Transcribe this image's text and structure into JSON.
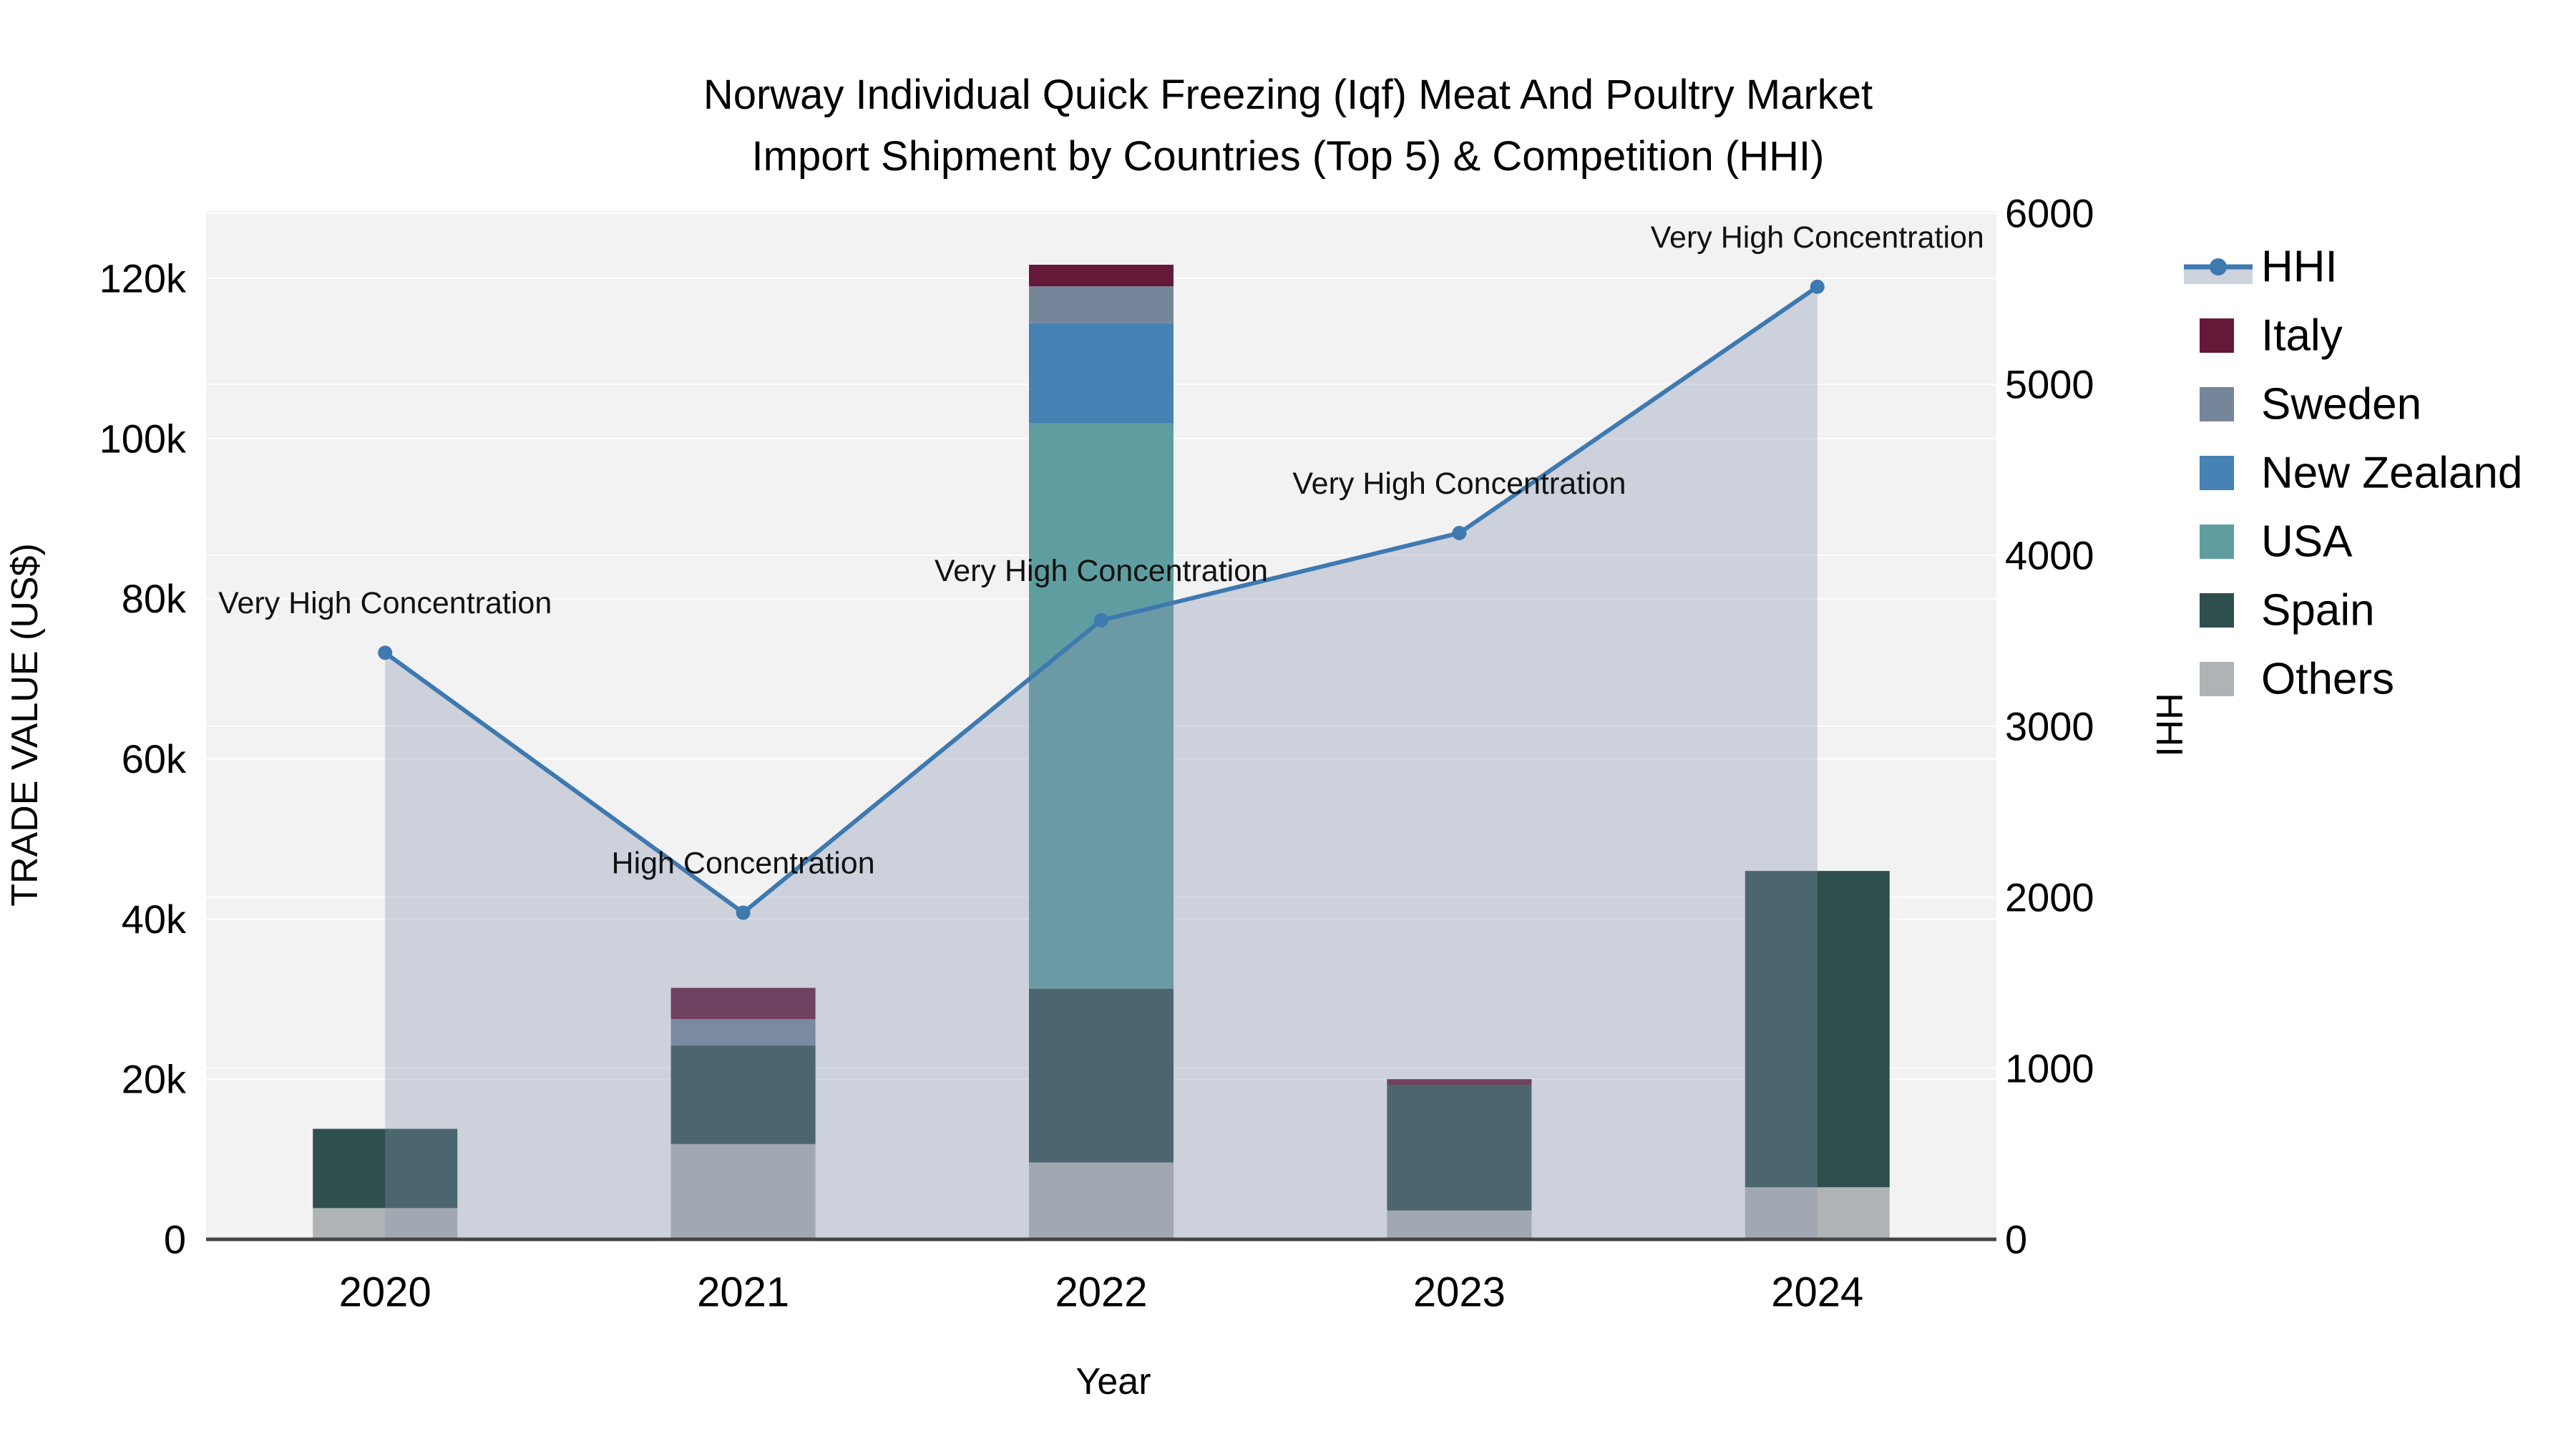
{
  "title": {
    "line1": "Norway Individual Quick Freezing (Iqf) Meat And Poultry Market",
    "line2": "Import Shipment by Countries (Top 5) & Competition (HHI)"
  },
  "axes": {
    "y_left": {
      "title": "TRADE VALUE (US$)",
      "ticks": [
        {
          "value": 0,
          "label": "0"
        },
        {
          "value": 20000,
          "label": "20k"
        },
        {
          "value": 40000,
          "label": "40k"
        },
        {
          "value": 60000,
          "label": "60k"
        },
        {
          "value": 80000,
          "label": "80k"
        },
        {
          "value": 100000,
          "label": "100k"
        },
        {
          "value": 120000,
          "label": "120k"
        }
      ]
    },
    "y_right": {
      "title": "HHI",
      "ticks": [
        {
          "value": 0,
          "label": "0"
        },
        {
          "value": 1000,
          "label": "1000"
        },
        {
          "value": 2000,
          "label": "2000"
        },
        {
          "value": 3000,
          "label": "3000"
        },
        {
          "value": 4000,
          "label": "4000"
        },
        {
          "value": 5000,
          "label": "5000"
        },
        {
          "value": 6000,
          "label": "6000"
        }
      ]
    },
    "x": {
      "title": "Year",
      "categories": [
        "2020",
        "2021",
        "2022",
        "2023",
        "2024"
      ]
    }
  },
  "chart_data": {
    "type": "combo_stacked_bar_line",
    "categories": [
      "2020",
      "2021",
      "2022",
      "2023",
      "2024"
    ],
    "bar_value_unit": "US$",
    "stack_order_bottom_to_top": [
      "Others",
      "Spain",
      "USA",
      "New Zealand",
      "Sweden",
      "Italy"
    ],
    "series": [
      {
        "name": "Italy",
        "color": "#661839",
        "values": [
          0,
          3900,
          2700,
          700,
          0
        ]
      },
      {
        "name": "Sweden",
        "color": "#76869a",
        "values": [
          0,
          3300,
          4600,
          0,
          0
        ]
      },
      {
        "name": "New Zealand",
        "color": "#4682b4",
        "values": [
          0,
          0,
          12500,
          0,
          0
        ]
      },
      {
        "name": "USA",
        "color": "#5f9ea0",
        "values": [
          0,
          0,
          70600,
          0,
          0
        ]
      },
      {
        "name": "Spain",
        "color": "#2f4f4f",
        "values": [
          9900,
          12300,
          21700,
          15700,
          39500
        ]
      },
      {
        "name": "Others",
        "color": "#b0b3b5",
        "values": [
          3900,
          11900,
          9600,
          3600,
          6500
        ]
      }
    ],
    "line_series": {
      "name": "HHI",
      "axis": "right",
      "values": [
        3430,
        1910,
        3620,
        4130,
        5570
      ],
      "color": "#3e79b0",
      "area_fill": "rgba(131,146,174,0.34)"
    },
    "annotations": [
      {
        "category": "2020",
        "text": "Very High Concentration"
      },
      {
        "category": "2021",
        "text": "High Concentration"
      },
      {
        "category": "2022",
        "text": "Very High Concentration"
      },
      {
        "category": "2023",
        "text": "Very High Concentration"
      },
      {
        "category": "2024",
        "text": "Very High Concentration"
      }
    ],
    "ylim_left": [
      0,
      128500
    ],
    "ylim_right": [
      0,
      6000
    ],
    "grid": true,
    "legend_position": "right"
  },
  "legend": {
    "items": [
      {
        "label": "HHI",
        "type": "line"
      },
      {
        "label": "Italy",
        "type": "square"
      },
      {
        "label": "Sweden",
        "type": "square"
      },
      {
        "label": "New Zealand",
        "type": "square"
      },
      {
        "label": "USA",
        "type": "square"
      },
      {
        "label": "Spain",
        "type": "square"
      },
      {
        "label": "Others",
        "type": "square"
      }
    ]
  },
  "colors": {
    "plot_background": "#f2f2f3",
    "gridline": "#ffffff",
    "x_axis_line": "#444444",
    "hhi_line": "#3e79b0",
    "hhi_area": "rgba(131,146,174,0.34)",
    "legend_band": "#ccd3dd"
  }
}
